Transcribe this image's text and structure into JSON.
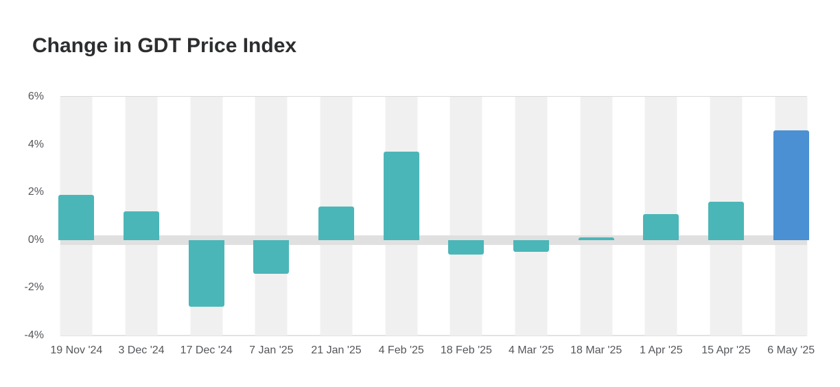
{
  "page": {
    "title": "Change in GDT Price Index"
  },
  "chart_data": {
    "type": "bar",
    "title": "Change in GDT Price Index",
    "categories": [
      "19 Nov '24",
      "3 Dec '24",
      "17 Dec '24",
      "7 Jan '25",
      "21 Jan '25",
      "4 Feb '25",
      "18 Feb '25",
      "4 Mar '25",
      "18 Mar '25",
      "1 Apr '25",
      "15 Apr '25",
      "6 May '25"
    ],
    "values": [
      1.9,
      1.2,
      -2.8,
      -1.4,
      1.4,
      3.7,
      -0.6,
      -0.5,
      0.1,
      1.1,
      1.6,
      4.6
    ],
    "unit": "%",
    "xlabel": "",
    "ylabel": "",
    "y_ticks": [
      "6%",
      "4%",
      "2%",
      "0%",
      "-2%",
      "-4%"
    ],
    "ylim": [
      -4,
      6
    ],
    "grid": "top and bottom borders plus thick zero band, no intermediate gridlines",
    "legend": "none",
    "highlight_index": 11,
    "colors": {
      "bar_default": "#4bb6b8",
      "bar_highlight": "#4a90d3",
      "column_stripe": "#f0f0f0",
      "zero_band": "#e0e0e0",
      "plot_border": "#d9d9d9",
      "axis_text": "#54565a",
      "title_text": "#2d2e30",
      "background": "#ffffff"
    }
  }
}
